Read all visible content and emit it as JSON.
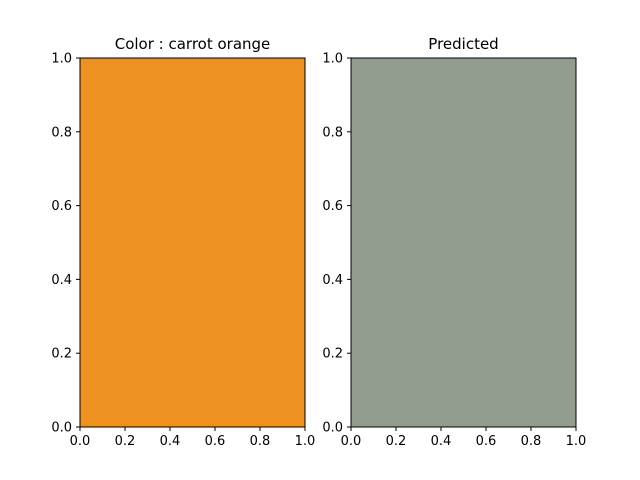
{
  "chart_data": [
    {
      "type": "heatmap",
      "title": "Color : carrot orange",
      "fill_color": "#ed9121",
      "xlim": [
        0,
        1
      ],
      "ylim": [
        0,
        1
      ],
      "xticks": [
        "0.0",
        "0.2",
        "0.4",
        "0.6",
        "0.8",
        "1.0"
      ],
      "yticks": [
        "0.0",
        "0.2",
        "0.4",
        "0.6",
        "0.8",
        "1.0"
      ],
      "grid": false
    },
    {
      "type": "heatmap",
      "title": "Predicted",
      "fill_color": "#939d8d",
      "xlim": [
        0,
        1
      ],
      "ylim": [
        0,
        1
      ],
      "xticks": [
        "0.0",
        "0.2",
        "0.4",
        "0.6",
        "0.8",
        "1.0"
      ],
      "yticks": [
        "0.0",
        "0.2",
        "0.4",
        "0.6",
        "0.8",
        "1.0"
      ],
      "grid": false
    }
  ]
}
